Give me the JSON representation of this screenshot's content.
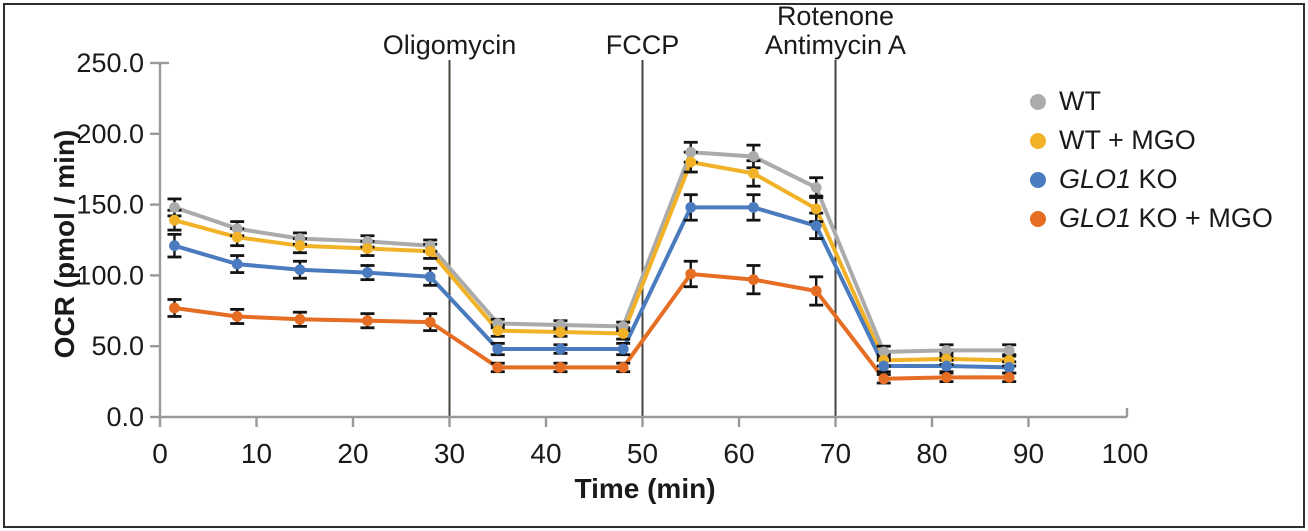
{
  "figure_name": "seahorse-ocr-assay-figure",
  "chart_data": {
    "type": "line",
    "title": "",
    "xlabel": "Time (min)",
    "ylabel": "OCR (pmol / min)",
    "xlim": [
      0,
      100
    ],
    "ylim": [
      0,
      250
    ],
    "grid": "off",
    "legend_position": "right",
    "x_ticks": [
      0,
      10,
      20,
      30,
      40,
      50,
      60,
      70,
      80,
      90,
      100
    ],
    "x_tick_labels": [
      "0",
      "10",
      "20",
      "30",
      "40",
      "50",
      "60",
      "70",
      "80",
      "90",
      "100"
    ],
    "y_ticks": [
      0,
      50,
      100,
      150,
      200,
      250
    ],
    "y_tick_labels": [
      "0.0",
      "50.0",
      "100.0",
      "150.0",
      "200.0",
      "250.0"
    ],
    "x": [
      1.5,
      8,
      14.5,
      21.5,
      28,
      35,
      41.5,
      48,
      55,
      61.5,
      68,
      75,
      81.5,
      88
    ],
    "series": [
      {
        "label_italic": "",
        "label_text": "WT",
        "color": "#ABABAB",
        "values": [
          148,
          133,
          126,
          124,
          121,
          66,
          65,
          64,
          187,
          184,
          162,
          46,
          47,
          47
        ],
        "errors": [
          6,
          5,
          4,
          4,
          4,
          3,
          3,
          3,
          7,
          8,
          7,
          4,
          4,
          4
        ]
      },
      {
        "label_italic": "",
        "label_text": "WT +  MGO",
        "color": "#F2B228",
        "values": [
          139,
          127,
          121,
          119,
          117,
          61,
          60,
          59,
          180,
          172,
          147,
          40,
          41,
          40
        ],
        "errors": [
          7,
          6,
          5,
          5,
          5,
          4,
          3,
          4,
          7,
          9,
          9,
          4,
          4,
          4
        ]
      },
      {
        "label_italic": "GLO1",
        "label_text": " KO",
        "color": "#4A7BBE",
        "values": [
          121,
          108,
          104,
          102,
          99,
          48,
          48,
          48,
          148,
          148,
          135,
          36,
          36,
          35
        ],
        "errors": [
          8,
          6,
          6,
          5,
          6,
          4,
          3,
          4,
          9,
          9,
          9,
          4,
          4,
          4
        ]
      },
      {
        "label_italic": "GLO1",
        "label_text": " KO +  MGO",
        "color": "#E56E24",
        "values": [
          77,
          71,
          69,
          68,
          67,
          35,
          35,
          35,
          101,
          97,
          89,
          27,
          28,
          28
        ],
        "errors": [
          6,
          5,
          5,
          5,
          6,
          3,
          3,
          3,
          9,
          10,
          10,
          3,
          3,
          3
        ]
      }
    ],
    "annotations": [
      {
        "lines": [
          "Oligomycin"
        ],
        "x": 30
      },
      {
        "lines": [
          "FCCP"
        ],
        "x": 50
      },
      {
        "lines": [
          "Rotenone",
          "Antimycin A"
        ],
        "x": 70
      }
    ]
  },
  "style_colors": {
    "error_bar": "#141414",
    "injection_line": "#4a443e",
    "axis_line": "#9a9a9a",
    "tick_text": "#1a1a1a"
  }
}
